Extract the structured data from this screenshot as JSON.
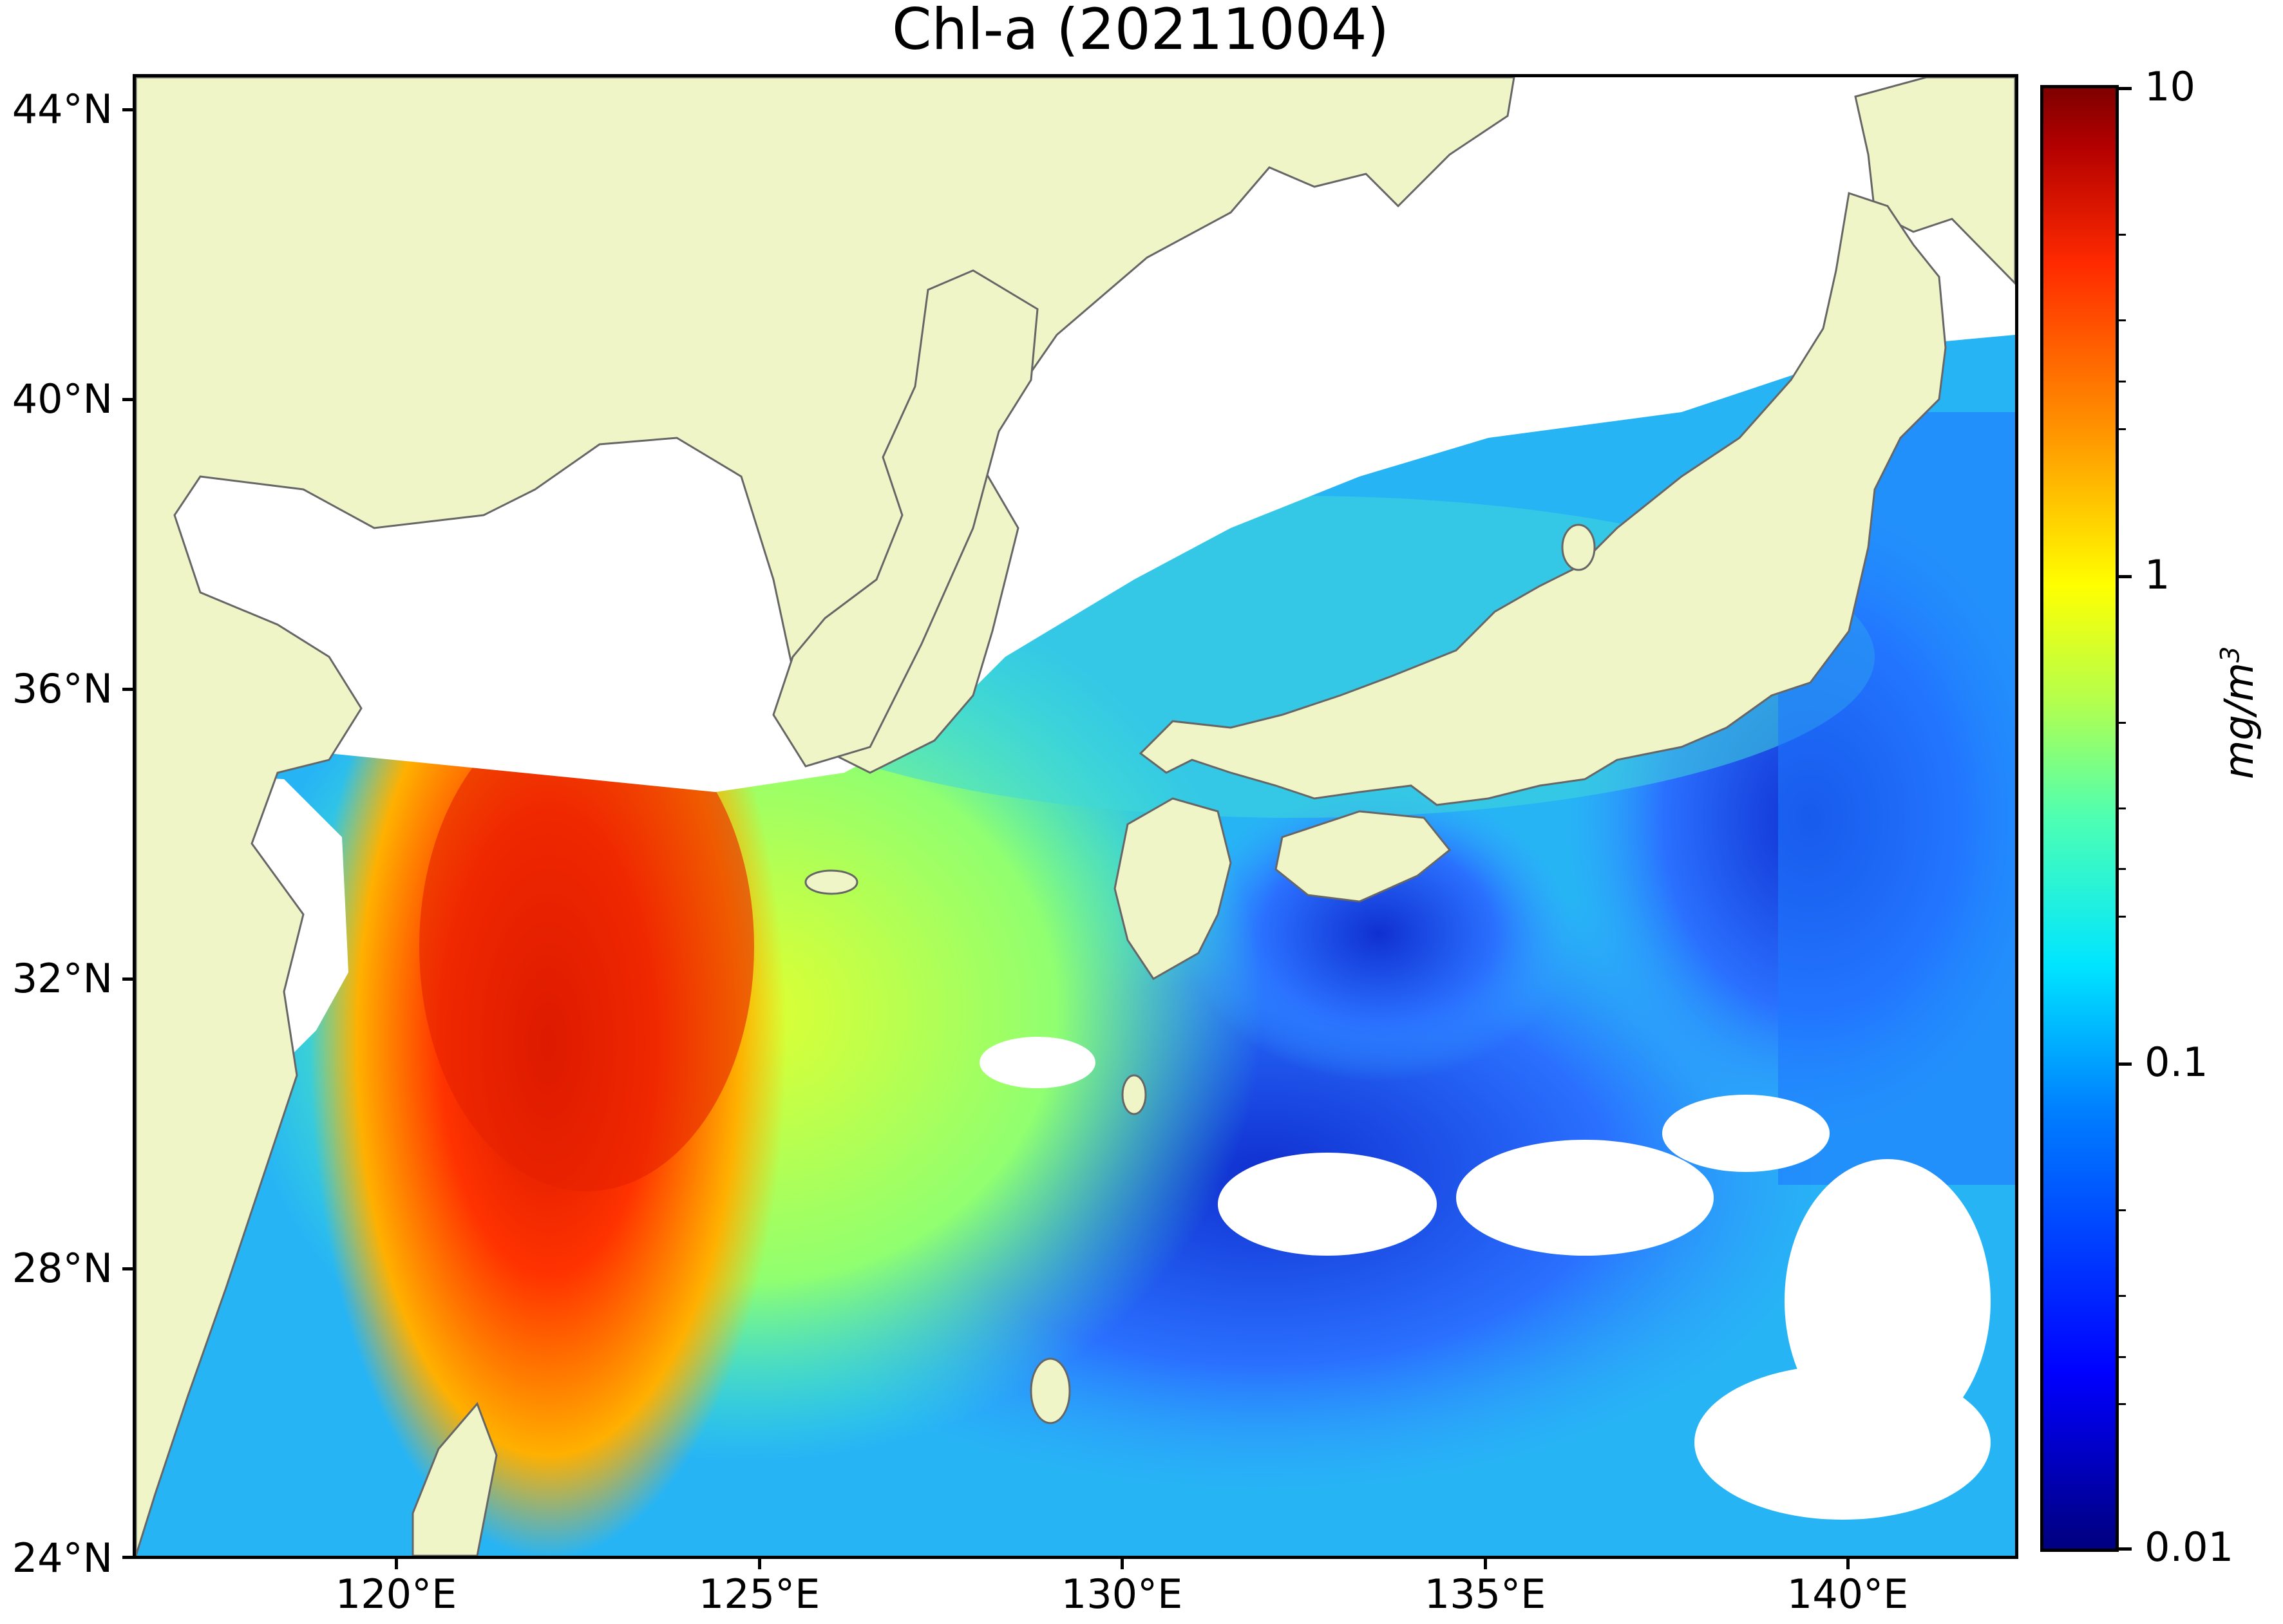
{
  "title": "Chl-a (20211004)",
  "latitude_labels": [
    "44°N",
    "40°N",
    "36°N",
    "32°N",
    "28°N",
    "24°N"
  ],
  "longitude_labels": [
    "120°E",
    "125°E",
    "130°E",
    "135°E",
    "140°E"
  ],
  "colorbar": {
    "unit_text": "mg/m",
    "unit_superscript": "3",
    "tick_labels": [
      "10",
      "1",
      "0.1",
      "0.01"
    ],
    "scale": "log",
    "range": [
      0.01,
      10
    ],
    "colormap": "jet"
  },
  "colors": {
    "land": "#f0f5c8",
    "no_data": "#ffffff",
    "coastline": "#666666"
  }
}
